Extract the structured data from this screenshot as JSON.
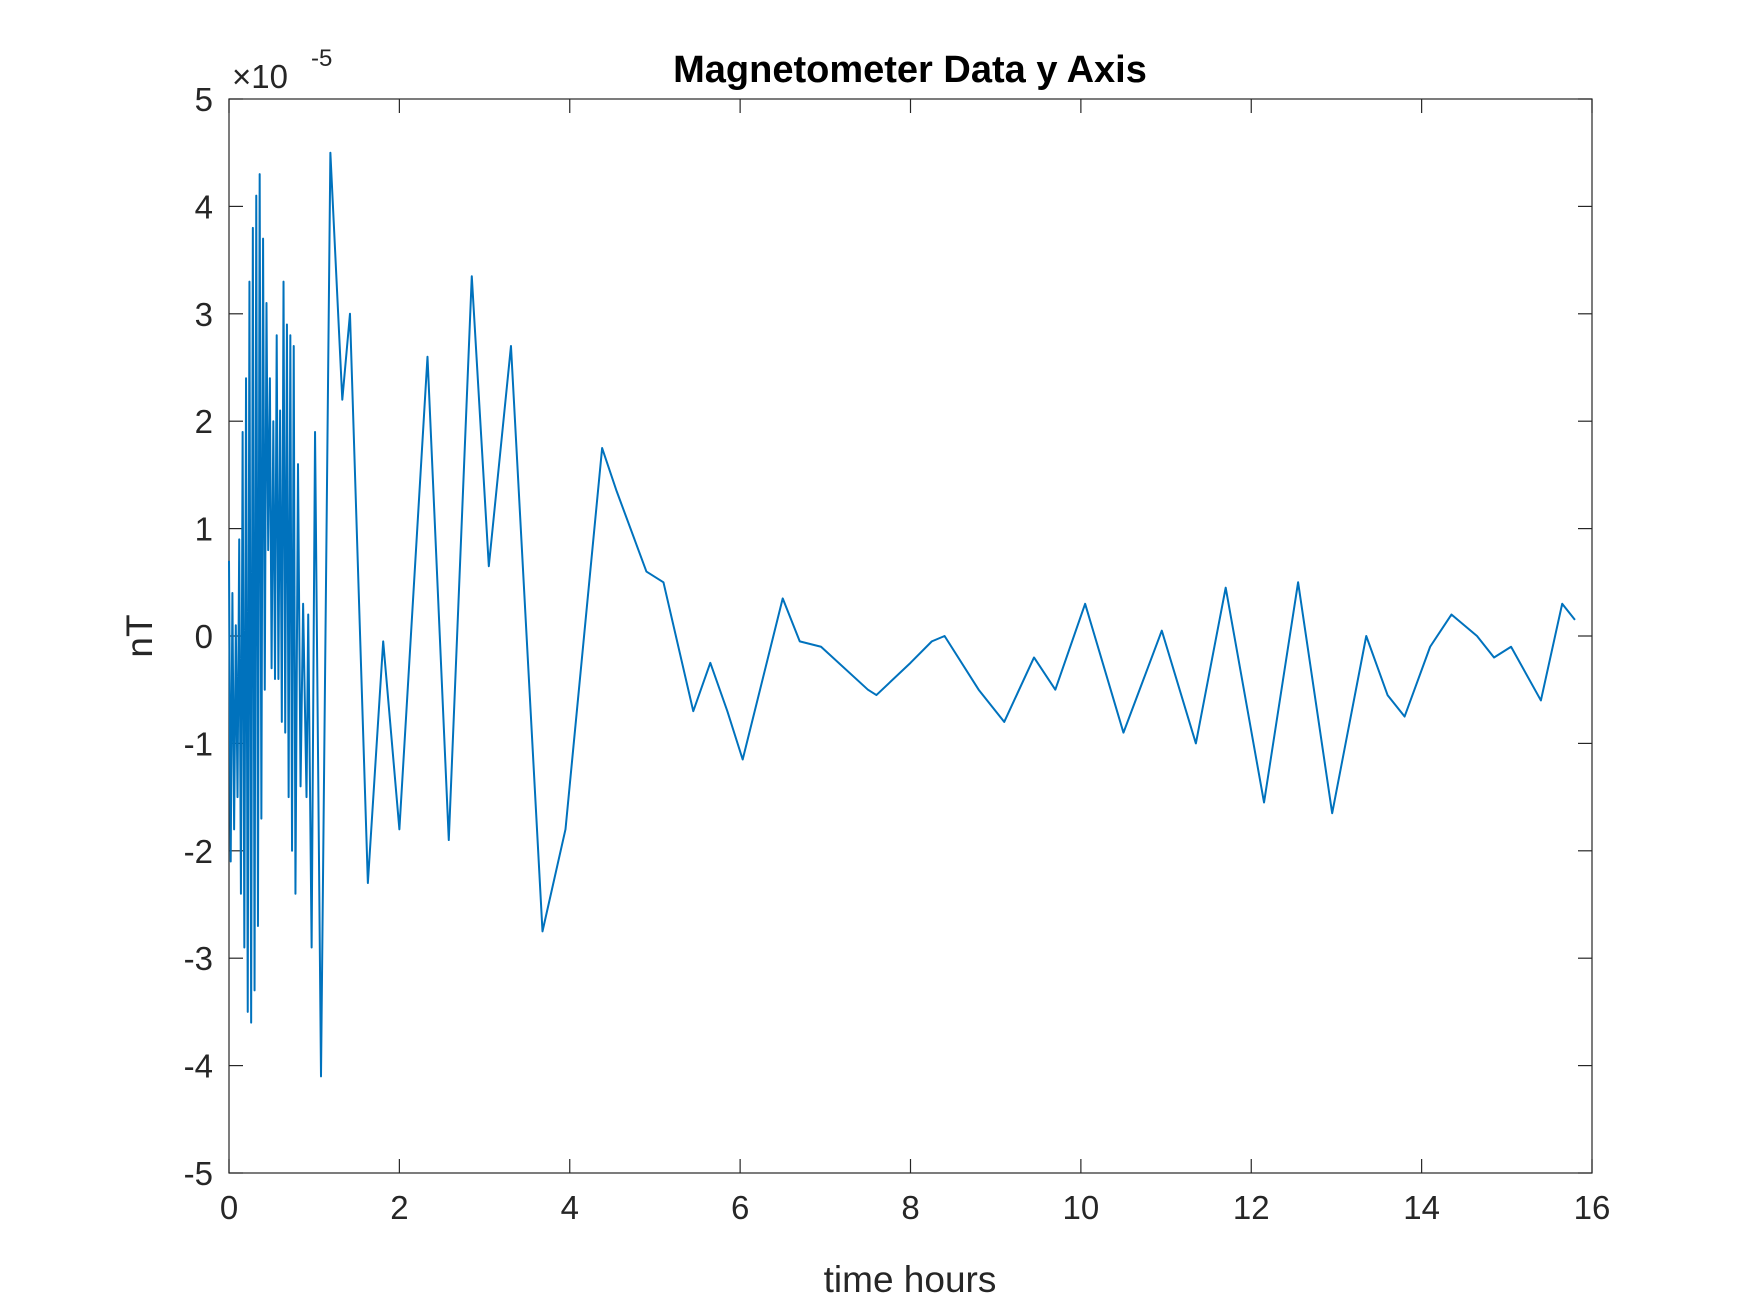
{
  "chart_data": {
    "type": "line",
    "title": "Magnetometer Data y Axis",
    "x_label": "time hours",
    "y_label": "nT",
    "y_multiplier": {
      "base": "×10",
      "exponent": "-5"
    },
    "x": [
      0,
      0.02,
      0.04,
      0.06,
      0.08,
      0.1,
      0.12,
      0.14,
      0.16,
      0.18,
      0.2,
      0.22,
      0.24,
      0.26,
      0.28,
      0.3,
      0.32,
      0.34,
      0.36,
      0.38,
      0.4,
      0.42,
      0.44,
      0.46,
      0.48,
      0.5,
      0.52,
      0.54,
      0.56,
      0.58,
      0.6,
      0.62,
      0.64,
      0.66,
      0.68,
      0.7,
      0.72,
      0.74,
      0.76,
      0.78,
      0.81,
      0.84,
      0.87,
      0.91,
      0.93,
      0.97,
      1.01,
      1.08,
      1.19,
      1.33,
      1.42,
      1.63,
      1.81,
      2.0,
      2.33,
      2.58,
      2.85,
      3.05,
      3.31,
      3.68,
      3.95,
      4.38,
      4.55,
      4.9,
      5.1,
      5.45,
      5.65,
      5.85,
      6.03,
      6.5,
      6.7,
      6.95,
      7.5,
      7.6,
      8.0,
      8.25,
      8.4,
      8.8,
      9.1,
      9.45,
      9.7,
      10.05,
      10.5,
      10.95,
      11.35,
      11.7,
      12.15,
      12.55,
      12.95,
      13.35,
      13.6,
      13.8,
      14.1,
      14.35,
      14.65,
      14.85,
      15.05,
      15.4,
      15.65,
      15.8
    ],
    "series": [
      {
        "name": "y",
        "color": "#0072bd",
        "values": [
          0.7,
          -2.1,
          0.4,
          -1.8,
          0.1,
          -1.5,
          0.9,
          -2.4,
          1.9,
          -2.9,
          2.4,
          -3.5,
          3.3,
          -3.6,
          3.8,
          -3.3,
          4.1,
          -2.7,
          4.3,
          -1.7,
          3.7,
          -0.5,
          3.1,
          0.8,
          2.4,
          -0.3,
          2.0,
          -0.4,
          2.8,
          -0.4,
          2.1,
          -0.8,
          3.3,
          -0.9,
          2.9,
          -1.5,
          2.8,
          -2.0,
          2.7,
          -2.4,
          1.6,
          -1.4,
          0.3,
          -1.5,
          0.2,
          -2.9,
          1.9,
          -4.1,
          4.5,
          2.2,
          3.0,
          -2.3,
          -0.05,
          -1.8,
          2.6,
          -1.9,
          3.35,
          0.65,
          2.7,
          -2.75,
          -1.8,
          1.75,
          1.35,
          0.6,
          0.5,
          -0.7,
          -0.25,
          -0.7,
          -1.15,
          0.35,
          -0.05,
          -0.1,
          -0.5,
          -0.55,
          -0.25,
          -0.05,
          0.0,
          -0.5,
          -0.8,
          -0.2,
          -0.5,
          0.3,
          -0.9,
          0.05,
          -1.0,
          0.45,
          -1.55,
          0.5,
          -1.65,
          0.0,
          -0.55,
          -0.75,
          -0.1,
          0.2,
          0.0,
          -0.2,
          -0.1,
          -0.6,
          0.3,
          0.15
        ]
      }
    ],
    "xlim": [
      0,
      16
    ],
    "xticks": [
      0,
      2,
      4,
      6,
      8,
      10,
      12,
      14,
      16
    ],
    "ylim": [
      -5,
      5
    ],
    "yticks": [
      -5,
      -4,
      -3,
      -2,
      -1,
      0,
      1,
      2,
      3,
      4,
      5
    ],
    "grid": false
  }
}
